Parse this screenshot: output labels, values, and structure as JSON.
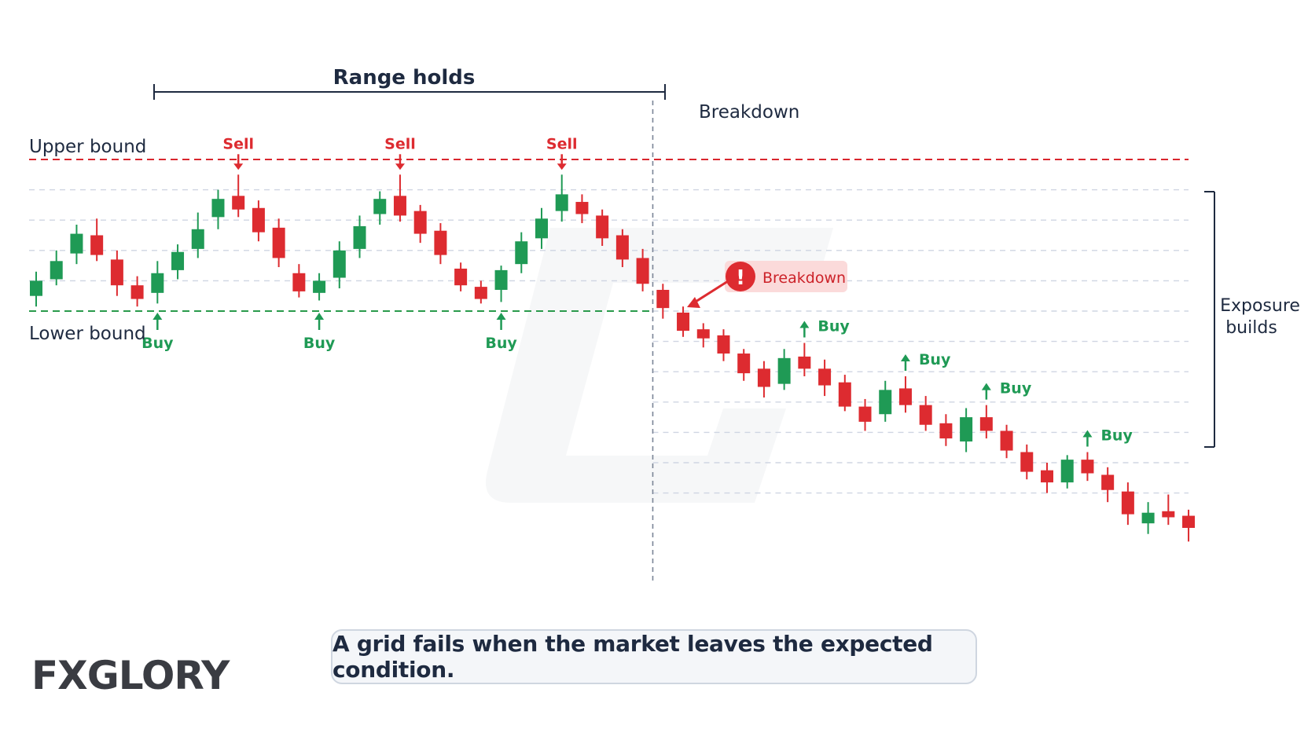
{
  "chart_data": {
    "type": "candlestick",
    "title": "Range holds",
    "ylabel": "",
    "xlabel": "",
    "levels": [
      {
        "name": "Upper bound",
        "value": 100,
        "color": "#d9262e",
        "style": "dashed"
      },
      {
        "name": "Lower bound",
        "value": 0,
        "color": "#2a9a4c",
        "style": "dashed"
      }
    ],
    "grid_levels": [
      80,
      60,
      40,
      20,
      -20,
      -40,
      -60,
      -80,
      -100,
      -120
    ],
    "ylim": [
      -147,
      132
    ],
    "candles": [
      {
        "o": 10,
        "c": 20,
        "h": 26,
        "l": 3
      },
      {
        "o": 21,
        "c": 33,
        "h": 40,
        "l": 17
      },
      {
        "o": 38,
        "c": 51,
        "h": 57,
        "l": 31
      },
      {
        "o": 50,
        "c": 37,
        "h": 61,
        "l": 33
      },
      {
        "o": 34,
        "c": 17,
        "h": 40,
        "l": 10
      },
      {
        "o": 17,
        "c": 8,
        "h": 23,
        "l": 3
      },
      {
        "o": 12,
        "c": 25,
        "h": 33,
        "l": 5
      },
      {
        "o": 27,
        "c": 39,
        "h": 44,
        "l": 21
      },
      {
        "o": 41,
        "c": 54,
        "h": 65,
        "l": 35
      },
      {
        "o": 62,
        "c": 74,
        "h": 80,
        "l": 54
      },
      {
        "o": 76,
        "c": 67,
        "h": 90,
        "l": 62
      },
      {
        "o": 68,
        "c": 52,
        "h": 73,
        "l": 46
      },
      {
        "o": 55,
        "c": 35,
        "h": 61,
        "l": 29
      },
      {
        "o": 25,
        "c": 13,
        "h": 31,
        "l": 9
      },
      {
        "o": 12,
        "c": 20,
        "h": 25,
        "l": 7
      },
      {
        "o": 22,
        "c": 40,
        "h": 46,
        "l": 15
      },
      {
        "o": 41,
        "c": 56,
        "h": 63,
        "l": 35
      },
      {
        "o": 64,
        "c": 74,
        "h": 79,
        "l": 57
      },
      {
        "o": 76,
        "c": 63,
        "h": 90,
        "l": 59
      },
      {
        "o": 66,
        "c": 51,
        "h": 70,
        "l": 45
      },
      {
        "o": 53,
        "c": 37,
        "h": 58,
        "l": 31
      },
      {
        "o": 28,
        "c": 17,
        "h": 32,
        "l": 13
      },
      {
        "o": 16,
        "c": 8,
        "h": 20,
        "l": 5
      },
      {
        "o": 14,
        "c": 27,
        "h": 30,
        "l": 6
      },
      {
        "o": 31,
        "c": 46,
        "h": 52,
        "l": 25
      },
      {
        "o": 48,
        "c": 61,
        "h": 68,
        "l": 41
      },
      {
        "o": 66,
        "c": 77,
        "h": 90,
        "l": 59
      },
      {
        "o": 72,
        "c": 64,
        "h": 77,
        "l": 58
      },
      {
        "o": 63,
        "c": 48,
        "h": 67,
        "l": 43
      },
      {
        "o": 50,
        "c": 34,
        "h": 54,
        "l": 29
      },
      {
        "o": 35,
        "c": 18,
        "h": 41,
        "l": 13
      },
      {
        "o": 14,
        "c": 2,
        "h": 18,
        "l": -5
      },
      {
        "o": -1,
        "c": -13,
        "h": 3,
        "l": -17
      },
      {
        "o": -12,
        "c": -18,
        "h": -8,
        "l": -24
      },
      {
        "o": -16,
        "c": -28,
        "h": -12,
        "l": -33
      },
      {
        "o": -28,
        "c": -41,
        "h": -25,
        "l": -46
      },
      {
        "o": -38,
        "c": -50,
        "h": -33,
        "l": -57
      },
      {
        "o": -48,
        "c": -31,
        "h": -25,
        "l": -52
      },
      {
        "o": -30,
        "c": -38,
        "h": -21,
        "l": -43
      },
      {
        "o": -38,
        "c": -49,
        "h": -32,
        "l": -56
      },
      {
        "o": -47,
        "c": -63,
        "h": -42,
        "l": -66
      },
      {
        "o": -63,
        "c": -73,
        "h": -58,
        "l": -79
      },
      {
        "o": -68,
        "c": -52,
        "h": -46,
        "l": -73
      },
      {
        "o": -51,
        "c": -62,
        "h": -43,
        "l": -67
      },
      {
        "o": -62,
        "c": -75,
        "h": -56,
        "l": -79
      },
      {
        "o": -74,
        "c": -84,
        "h": -68,
        "l": -89
      },
      {
        "o": -86,
        "c": -70,
        "h": -64,
        "l": -93
      },
      {
        "o": -70,
        "c": -79,
        "h": -62,
        "l": -84
      },
      {
        "o": -79,
        "c": -92,
        "h": -75,
        "l": -97
      },
      {
        "o": -93,
        "c": -106,
        "h": -88,
        "l": -111
      },
      {
        "o": -105,
        "c": -113,
        "h": -100,
        "l": -120
      },
      {
        "o": -113,
        "c": -98,
        "h": -95,
        "l": -117
      },
      {
        "o": -98,
        "c": -107,
        "h": -93,
        "l": -112
      },
      {
        "o": -108,
        "c": -118,
        "h": -103,
        "l": -126
      },
      {
        "o": -119,
        "c": -134,
        "h": -113,
        "l": -141
      },
      {
        "o": -140,
        "c": -133,
        "h": -126,
        "l": -147
      },
      {
        "o": -132,
        "c": -136,
        "h": -121,
        "l": -141
      },
      {
        "o": -135,
        "c": -143,
        "h": -131,
        "l": -152
      }
    ],
    "breakdown_after_candle": 31,
    "sell_markers": [
      {
        "candle": 10,
        "label": "Sell"
      },
      {
        "candle": 18,
        "label": "Sell"
      },
      {
        "candle": 26,
        "label": "Sell"
      }
    ],
    "buy_markers": [
      {
        "candle": 6,
        "label": "Buy"
      },
      {
        "candle": 14,
        "label": "Buy"
      },
      {
        "candle": 23,
        "label": "Buy"
      },
      {
        "candle": 38,
        "label": "Buy"
      },
      {
        "candle": 43,
        "label": "Buy"
      },
      {
        "candle": 47,
        "label": "Buy"
      },
      {
        "candle": 52,
        "label": "Buy"
      }
    ],
    "annotations": {
      "range": "Range holds",
      "breakdown_header": "Breakdown",
      "breakdown_badge": "Breakdown",
      "exposure": [
        "Exposure",
        "builds"
      ]
    },
    "colors": {
      "up": "#1f9a55",
      "down": "#dd2b30",
      "upper": "#d9262e",
      "lower": "#2a9a4c",
      "ink": "#1e2a40",
      "grid": "#cfd5e2"
    }
  },
  "caption": "A grid fails when the market leaves the expected condition.",
  "logo": {
    "prefix": "FX",
    "accent": "",
    "rest": "GLORY"
  }
}
